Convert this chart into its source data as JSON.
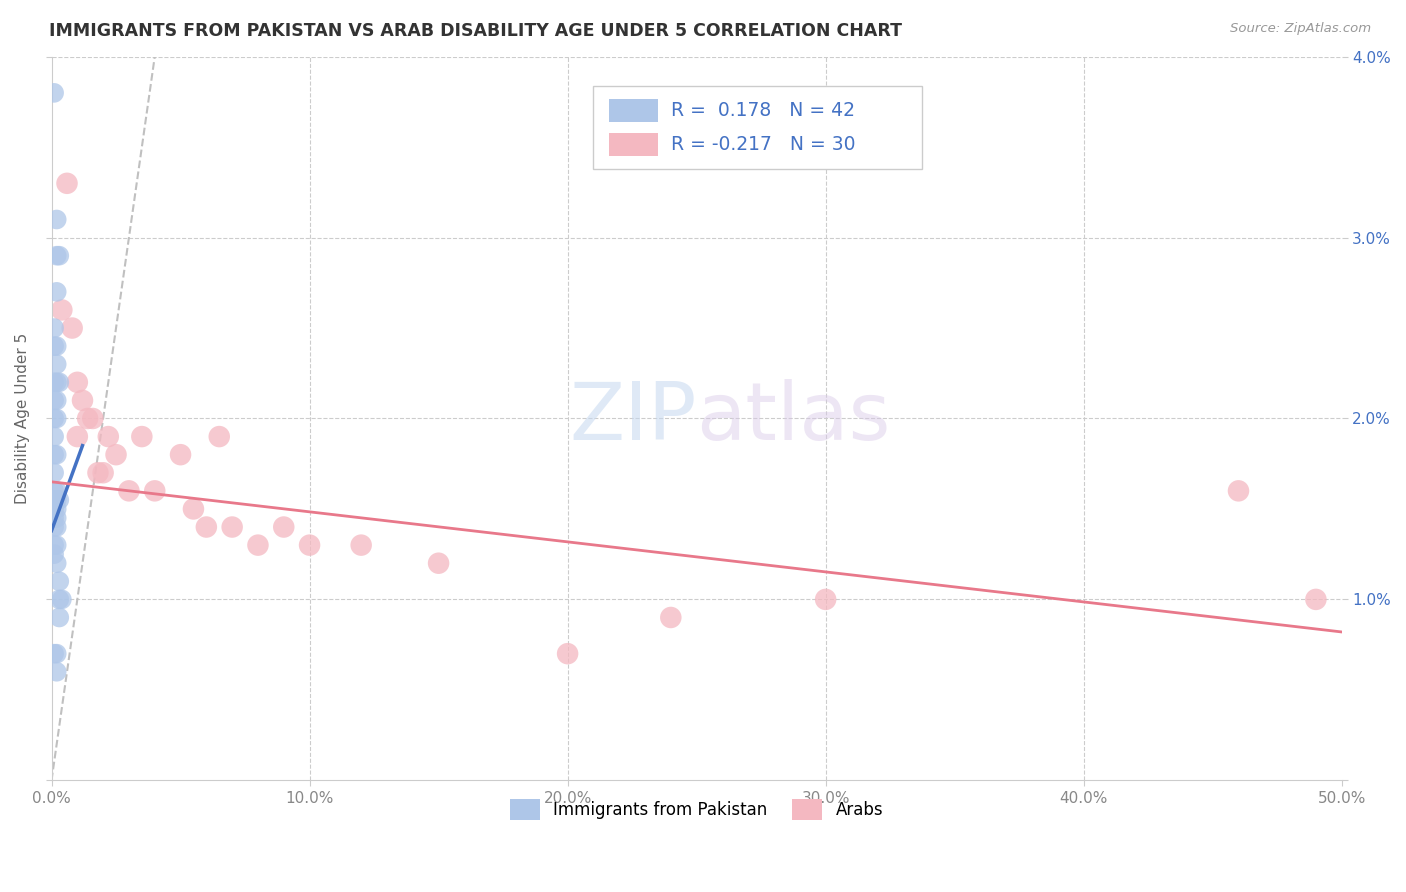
{
  "title": "IMMIGRANTS FROM PAKISTAN VS ARAB DISABILITY AGE UNDER 5 CORRELATION CHART",
  "source": "Source: ZipAtlas.com",
  "ylabel": "Disability Age Under 5",
  "xlim": [
    0,
    0.5
  ],
  "ylim": [
    0,
    0.04
  ],
  "xticks": [
    0.0,
    0.1,
    0.2,
    0.3,
    0.4,
    0.5
  ],
  "xticklabels": [
    "0.0%",
    "10.0%",
    "20.0%",
    "30.0%",
    "40.0%",
    "50.0%"
  ],
  "yticks": [
    0.0,
    0.01,
    0.02,
    0.03,
    0.04
  ],
  "yticklabels_right": [
    "",
    "1.0%",
    "2.0%",
    "3.0%",
    "4.0%"
  ],
  "background_color": "#ffffff",
  "grid_color": "#cccccc",
  "pakistan_color": "#aec6e8",
  "arab_color": "#f4b8c1",
  "pakistan_line_color": "#4472c4",
  "arab_line_color": "#e8788a",
  "dashed_line_color": "#c0c0c0",
  "tick_label_color_right": "#4472c4",
  "tick_label_color_bottom": "#888888",
  "legend_color": "#4472c4",
  "pakistan_R": 0.178,
  "pakistan_N": 42,
  "arab_R": -0.217,
  "arab_N": 30,
  "pakistan_pts": [
    [
      0.001,
      0.038
    ],
    [
      0.002,
      0.031
    ],
    [
      0.002,
      0.029
    ],
    [
      0.003,
      0.029
    ],
    [
      0.002,
      0.027
    ],
    [
      0.001,
      0.025
    ],
    [
      0.001,
      0.024
    ],
    [
      0.002,
      0.024
    ],
    [
      0.002,
      0.023
    ],
    [
      0.001,
      0.022
    ],
    [
      0.002,
      0.022
    ],
    [
      0.003,
      0.022
    ],
    [
      0.001,
      0.021
    ],
    [
      0.002,
      0.021
    ],
    [
      0.001,
      0.02
    ],
    [
      0.002,
      0.02
    ],
    [
      0.001,
      0.019
    ],
    [
      0.001,
      0.018
    ],
    [
      0.002,
      0.018
    ],
    [
      0.001,
      0.017
    ],
    [
      0.001,
      0.016
    ],
    [
      0.002,
      0.016
    ],
    [
      0.001,
      0.0155
    ],
    [
      0.002,
      0.0155
    ],
    [
      0.003,
      0.0155
    ],
    [
      0.001,
      0.015
    ],
    [
      0.002,
      0.015
    ],
    [
      0.001,
      0.0145
    ],
    [
      0.002,
      0.0145
    ],
    [
      0.001,
      0.014
    ],
    [
      0.002,
      0.014
    ],
    [
      0.001,
      0.013
    ],
    [
      0.002,
      0.013
    ],
    [
      0.001,
      0.0125
    ],
    [
      0.002,
      0.012
    ],
    [
      0.003,
      0.011
    ],
    [
      0.003,
      0.01
    ],
    [
      0.004,
      0.01
    ],
    [
      0.003,
      0.009
    ],
    [
      0.001,
      0.007
    ],
    [
      0.002,
      0.007
    ],
    [
      0.002,
      0.006
    ]
  ],
  "arab_pts": [
    [
      0.004,
      0.026
    ],
    [
      0.006,
      0.033
    ],
    [
      0.008,
      0.025
    ],
    [
      0.01,
      0.022
    ],
    [
      0.01,
      0.019
    ],
    [
      0.012,
      0.021
    ],
    [
      0.014,
      0.02
    ],
    [
      0.016,
      0.02
    ],
    [
      0.018,
      0.017
    ],
    [
      0.02,
      0.017
    ],
    [
      0.022,
      0.019
    ],
    [
      0.025,
      0.018
    ],
    [
      0.03,
      0.016
    ],
    [
      0.035,
      0.019
    ],
    [
      0.04,
      0.016
    ],
    [
      0.05,
      0.018
    ],
    [
      0.055,
      0.015
    ],
    [
      0.06,
      0.014
    ],
    [
      0.065,
      0.019
    ],
    [
      0.07,
      0.014
    ],
    [
      0.08,
      0.013
    ],
    [
      0.09,
      0.014
    ],
    [
      0.1,
      0.013
    ],
    [
      0.12,
      0.013
    ],
    [
      0.15,
      0.012
    ],
    [
      0.2,
      0.007
    ],
    [
      0.24,
      0.009
    ],
    [
      0.3,
      0.01
    ],
    [
      0.46,
      0.016
    ],
    [
      0.49,
      0.01
    ]
  ],
  "pak_line_x": [
    0.0,
    0.012
  ],
  "pak_line_y": [
    0.0138,
    0.0185
  ],
  "arab_line_x": [
    0.0,
    0.5
  ],
  "arab_line_y": [
    0.0165,
    0.0082
  ],
  "diag_line": [
    [
      0.0,
      0.5
    ],
    [
      0.0,
      0.5
    ]
  ]
}
